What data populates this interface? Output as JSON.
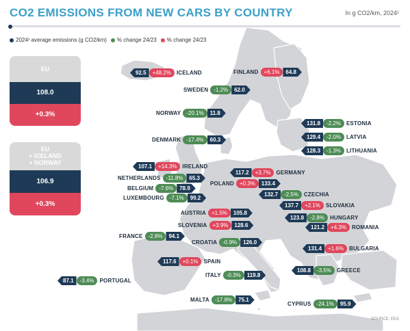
{
  "header": {
    "title": "CO2 EMISSIONS FROM NEW CARS BY COUNTRY",
    "unit": "In g CO2/km, 2024¹"
  },
  "legend": [
    {
      "label": "2024¹ average emissions (g CO2/km)",
      "color": "#1e3a56"
    },
    {
      "label": "% change 24/23",
      "color": "#4e8c56"
    },
    {
      "label": "% change 24/23",
      "color": "#e0475d"
    }
  ],
  "summary": [
    {
      "name": "EU",
      "value": "108.0",
      "change": "+0.3%"
    },
    {
      "name": "EU\n+ ICELAND\n+ NORWAY",
      "value": "106.9",
      "change": "+0.3%"
    }
  ],
  "countries": [
    {
      "name": "ICELAND",
      "value": "92.5",
      "change": "+48.2%",
      "dir": "up"
    },
    {
      "name": "FINLAND",
      "value": "64.8",
      "change": "+6.1%",
      "dir": "up"
    },
    {
      "name": "SWEDEN",
      "value": "62.0",
      "change": "-1.2%",
      "dir": "down"
    },
    {
      "name": "NORWAY",
      "value": "11.8",
      "change": "-20.1%",
      "dir": "down"
    },
    {
      "name": "DENMARK",
      "value": "60.3",
      "change": "-17.4%",
      "dir": "down"
    },
    {
      "name": "ESTONIA",
      "value": "131.8",
      "change": "-2.2%",
      "dir": "down"
    },
    {
      "name": "LATVIA",
      "value": "129.4",
      "change": "-2.0%",
      "dir": "down"
    },
    {
      "name": "LITHUANIA",
      "value": "128.3",
      "change": "-1.3%",
      "dir": "down"
    },
    {
      "name": "IRELAND",
      "value": "107.1",
      "change": "+14.3%",
      "dir": "up"
    },
    {
      "name": "GERMANY",
      "value": "117.2",
      "change": "+3.7%",
      "dir": "up"
    },
    {
      "name": "NETHERLANDS",
      "value": "65.3",
      "change": "-11.8%",
      "dir": "down"
    },
    {
      "name": "POLAND",
      "value": "133.4",
      "change": "+0.3%",
      "dir": "up"
    },
    {
      "name": "BELGIUM",
      "value": "78.9",
      "change": "-7.6%",
      "dir": "down"
    },
    {
      "name": "CZECHIA",
      "value": "132.7",
      "change": "-2.5%",
      "dir": "down"
    },
    {
      "name": "LUXEMBOURG",
      "value": "99.2",
      "change": "-7.1%",
      "dir": "down"
    },
    {
      "name": "SLOVAKIA",
      "value": "137.7",
      "change": "+2.1%",
      "dir": "up"
    },
    {
      "name": "AUSTRIA",
      "value": "105.8",
      "change": "+1.5%",
      "dir": "up"
    },
    {
      "name": "HUNGARY",
      "value": "123.8",
      "change": "-2.8%",
      "dir": "down"
    },
    {
      "name": "SLOVENIA",
      "value": "128.6",
      "change": "+3.9%",
      "dir": "up"
    },
    {
      "name": "ROMANIA",
      "value": "121.2",
      "change": "+4.3%",
      "dir": "up"
    },
    {
      "name": "FRANCE",
      "value": "94.1",
      "change": "-2.8%",
      "dir": "down"
    },
    {
      "name": "CROATIA",
      "value": "126.0",
      "change": "-0.9%",
      "dir": "down"
    },
    {
      "name": "BULGARIA",
      "value": "131.4",
      "change": "+1.6%",
      "dir": "up"
    },
    {
      "name": "SPAIN",
      "value": "117.6",
      "change": "+0.1%",
      "dir": "up"
    },
    {
      "name": "ITALY",
      "value": "119.8",
      "change": "-0.3%",
      "dir": "down"
    },
    {
      "name": "PORTUGAL",
      "value": "87.1",
      "change": "-3.4%",
      "dir": "down"
    },
    {
      "name": "GREECE",
      "value": "108.8",
      "change": "-3.5%",
      "dir": "down"
    },
    {
      "name": "MALTA",
      "value": "75.1",
      "change": "-17.8%",
      "dir": "down"
    },
    {
      "name": "CYPRUS",
      "value": "95.9",
      "change": "-24.1%",
      "dir": "down"
    }
  ],
  "source": "SOURCE: EEA"
}
